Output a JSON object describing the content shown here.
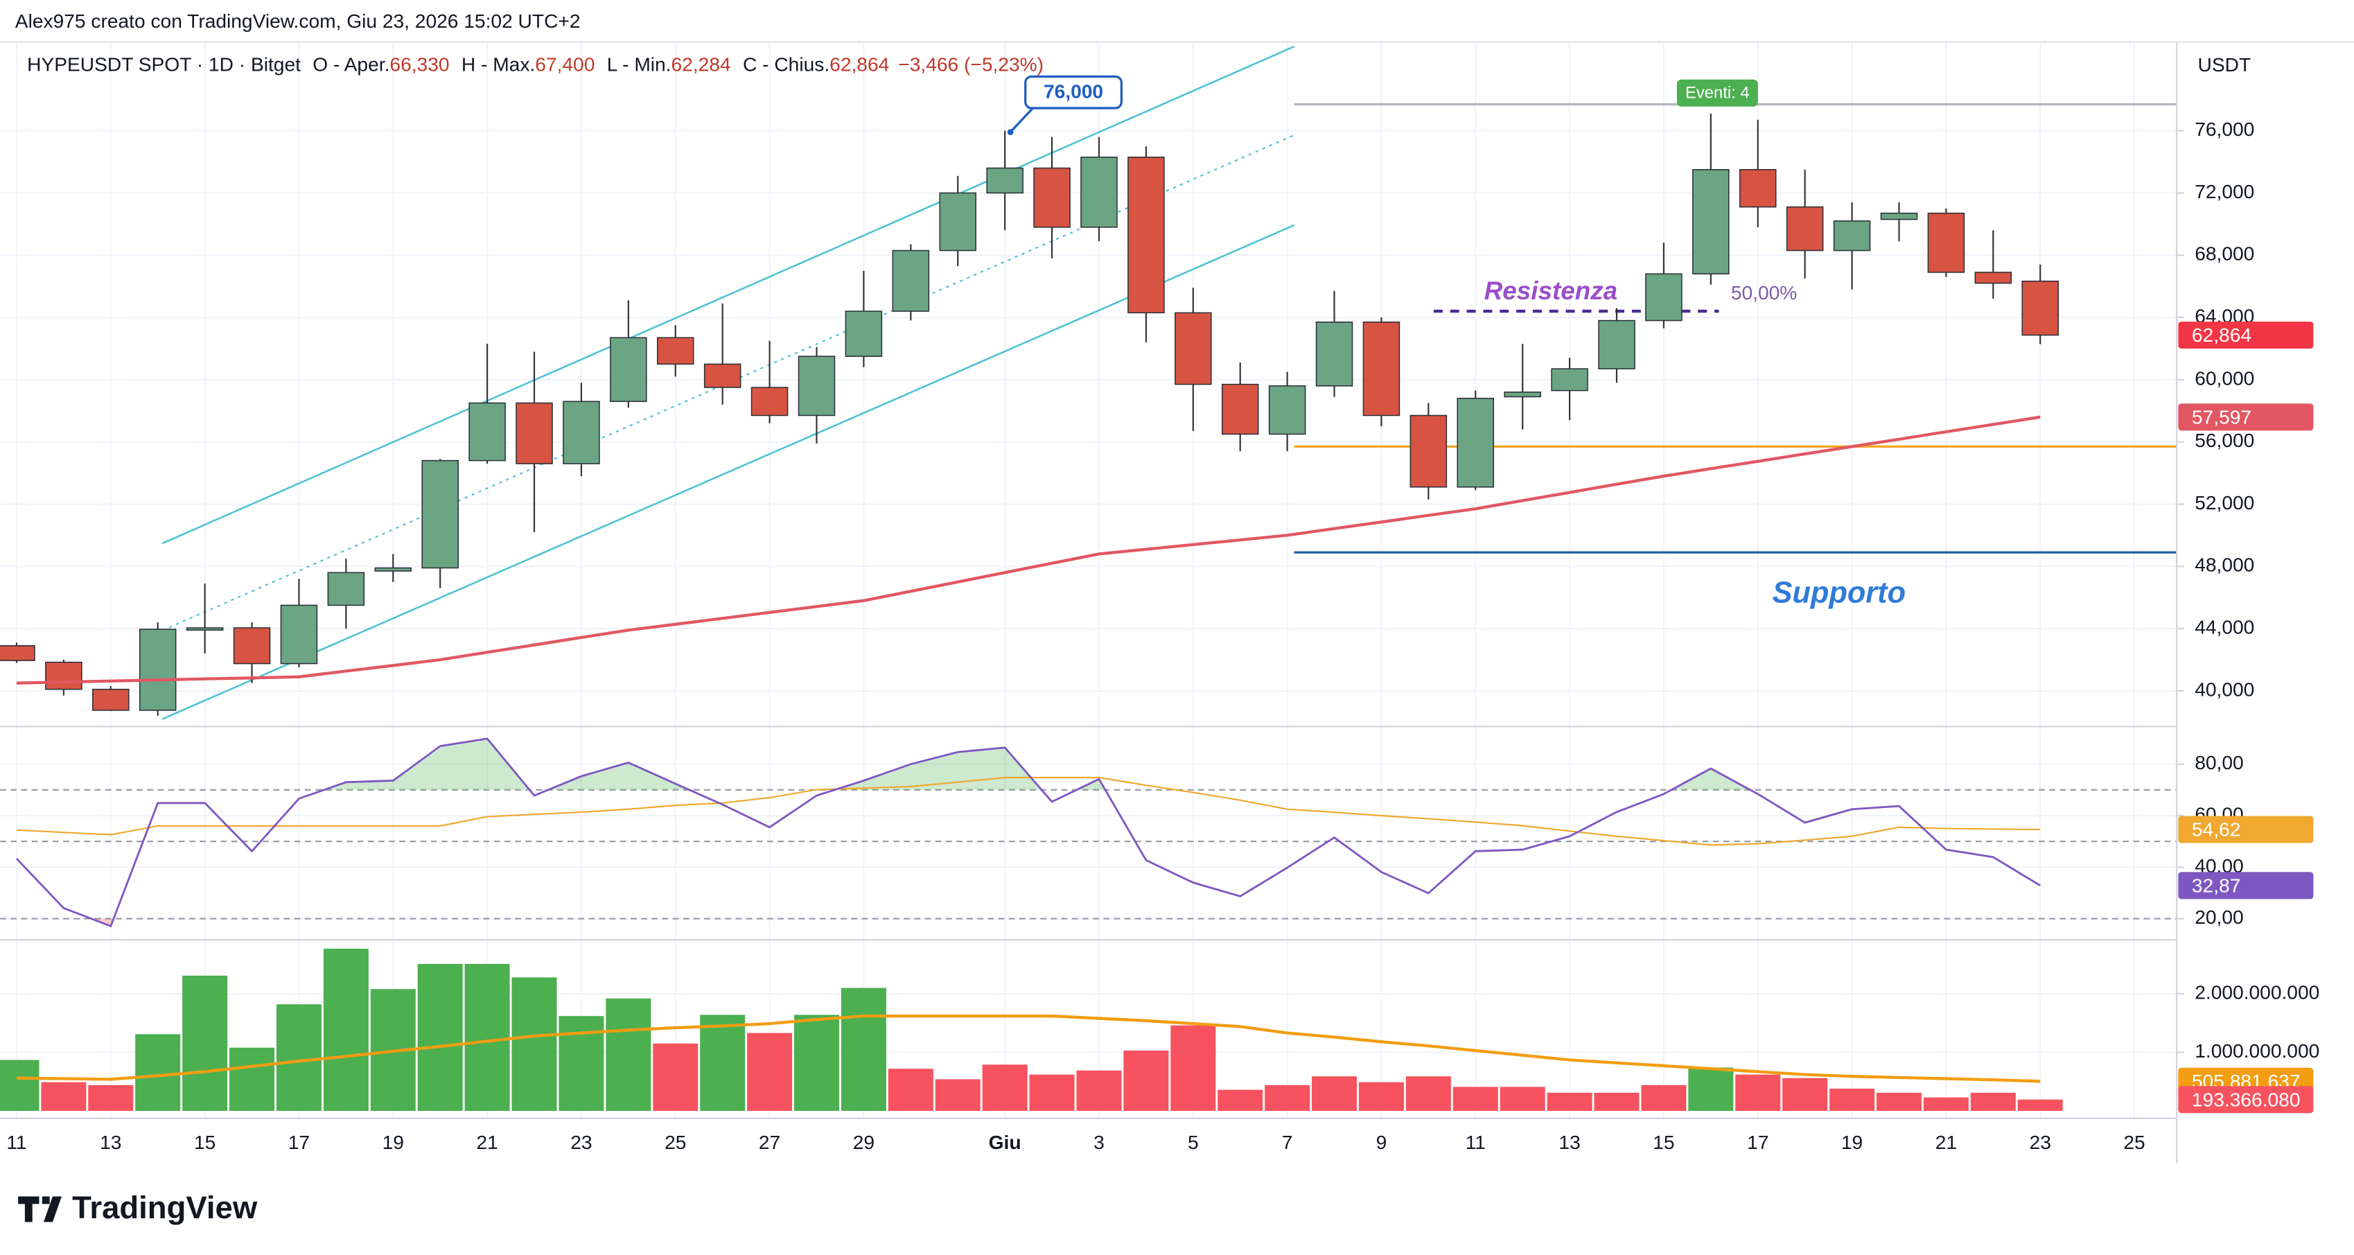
{
  "header": {
    "credit": "Alex975 creato con TradingView.com, Giu 23, 2026 15:02 UTC+2",
    "symbol": "HYPEUSDT SPOT · 1D · Bitget",
    "o": "O - Aper.",
    "o_value": "66,330",
    "h": "H - Max.",
    "h_value": "67,400",
    "l": "L - Min.",
    "l_value": "62,284",
    "c": "C - Chius.",
    "c_value": "62,864",
    "change": "−3,466 (−5,23%)"
  },
  "footer": {
    "brand": "TradingView"
  },
  "chart_data": [
    {
      "type": "candlestick",
      "currency": "USDT",
      "up_color": "#6ba583",
      "down_color": "#d75442",
      "open": [
        42900,
        41840,
        40100,
        38750,
        44000,
        44050,
        41750,
        45500,
        47700,
        47900,
        54800,
        58500,
        54600,
        58600,
        62700,
        61000,
        59500,
        57700,
        61500,
        64400,
        68300,
        72000,
        73600,
        69800,
        74300,
        64300,
        59700,
        56500,
        59600,
        63700,
        57700,
        53100,
        58900,
        59300,
        60700,
        63800,
        66800,
        73500,
        71100,
        68300,
        70300,
        70700,
        66900,
        66330,
        null,
        null
      ],
      "high": [
        43100,
        42000,
        40300,
        44400,
        46900,
        44400,
        47200,
        48500,
        48800,
        54900,
        62300,
        61800,
        59800,
        65100,
        63500,
        64900,
        62500,
        62100,
        67000,
        68700,
        73100,
        76000,
        75600,
        75600,
        75000,
        65900,
        61100,
        60500,
        65700,
        64000,
        58500,
        59300,
        62300,
        61400,
        64600,
        68800,
        77100,
        76700,
        73500,
        71400,
        71400,
        71000,
        69600,
        67400,
        null,
        null
      ],
      "low": [
        41800,
        39700,
        38700,
        38400,
        42400,
        40500,
        41500,
        44000,
        47000,
        46600,
        54600,
        50200,
        53800,
        58200,
        60200,
        58400,
        57200,
        55900,
        60800,
        63800,
        67300,
        69600,
        67800,
        68900,
        62400,
        56700,
        55400,
        55400,
        58900,
        57000,
        52300,
        52900,
        56800,
        57400,
        59800,
        63300,
        66100,
        69800,
        66500,
        65800,
        68900,
        66600,
        65200,
        62284,
        null,
        null
      ],
      "close": [
        41950,
        40100,
        38750,
        43960,
        44050,
        41750,
        45500,
        47600,
        47900,
        54800,
        58500,
        54600,
        58600,
        62700,
        61000,
        59500,
        57700,
        61500,
        64400,
        68300,
        72000,
        73600,
        69800,
        74300,
        64300,
        59700,
        56500,
        59600,
        63700,
        57700,
        53100,
        58800,
        59200,
        60700,
        63800,
        66800,
        73500,
        71100,
        68300,
        70200,
        70700,
        66900,
        66200,
        62864,
        null,
        null
      ],
      "close_labels": [
        null,
        null,
        null,
        null,
        null,
        null,
        null,
        null,
        null,
        null,
        null,
        null,
        null,
        null,
        null,
        null,
        null,
        null,
        null,
        null,
        null,
        null,
        null,
        null,
        null,
        null,
        null,
        null,
        null,
        null,
        null,
        null,
        null,
        null,
        null,
        null,
        null,
        null,
        null,
        null,
        null,
        null,
        null,
        "62,864",
        null,
        null
      ],
      "overlays": [
        {
          "color": "#e25762",
          "values": [
            40500,
            40570,
            40630,
            40700,
            40770,
            40830,
            40900,
            41270,
            41630,
            42000,
            42480,
            42950,
            43430,
            43900,
            44280,
            44660,
            45040,
            45420,
            45800,
            46400,
            47000,
            47600,
            48200,
            48800,
            49100,
            49400,
            49700,
            50000,
            50430,
            50850,
            51280,
            51700,
            52230,
            52750,
            53280,
            53800,
            54280,
            54750,
            55230,
            55700,
            56170,
            56650,
            57120,
            57597,
            null,
            null
          ],
          "value_labels": [
            null,
            null,
            null,
            null,
            null,
            null,
            null,
            null,
            null,
            null,
            null,
            null,
            null,
            null,
            null,
            null,
            null,
            null,
            null,
            null,
            null,
            null,
            null,
            null,
            null,
            null,
            null,
            null,
            null,
            null,
            null,
            null,
            null,
            null,
            null,
            null,
            null,
            null,
            null,
            null,
            null,
            null,
            null,
            "57,597",
            null,
            null
          ]
        }
      ],
      "levels": [
        {
          "value": 77700,
          "color": "#b2b5be",
          "style": "solid"
        },
        {
          "value": 55700,
          "color": "#f5a623",
          "style": "solid"
        },
        {
          "value": 48900,
          "color": "#1f5fa6",
          "style": "solid"
        },
        {
          "value": 64400,
          "color": "#4a2d8f",
          "style": "dashed"
        }
      ],
      "annotations": {
        "callout": "76,000",
        "events": "Eventi: 4",
        "resistance": "Resistenza",
        "fib": "50,00%",
        "support": "Supporto"
      },
      "ylim": [
        37800,
        81700
      ],
      "yticks": [
        {
          "value": 40000,
          "label": "40,000"
        },
        {
          "value": 44000,
          "label": "44,000"
        },
        {
          "value": 48000,
          "label": "48,000"
        },
        {
          "value": 52000,
          "label": "52,000"
        },
        {
          "value": 56000,
          "label": "56,000"
        },
        {
          "value": 60000,
          "label": "60,000"
        },
        {
          "value": 64000,
          "label": "64,000"
        },
        {
          "value": 68000,
          "label": "68,000"
        },
        {
          "value": 72000,
          "label": "72,000"
        },
        {
          "value": 76000,
          "label": "76,000"
        }
      ],
      "grid": true
    },
    {
      "type": "line",
      "ylim": [
        12.4,
        94
      ],
      "bands": [
        70,
        50,
        20
      ],
      "yticks": [
        {
          "value": 20,
          "label": "20,00"
        },
        {
          "value": 40,
          "label": "40,00"
        },
        {
          "value": 60,
          "label": "60,00"
        },
        {
          "value": 80,
          "label": "80,00"
        }
      ],
      "series": [
        {
          "color": "#7e57c2",
          "values": [
            43.3,
            24.1,
            17.1,
            64.9,
            64.9,
            46.2,
            66.6,
            73.0,
            73.6,
            87.0,
            89.9,
            67.8,
            75.3,
            80.6,
            72.4,
            64.3,
            55.5,
            67.8,
            73.6,
            80.0,
            84.7,
            86.4,
            65.4,
            74.2,
            42.7,
            34.0,
            28.7,
            39.8,
            51.5,
            38.1,
            29.9,
            46.2,
            46.8,
            52.0,
            61.4,
            68.4,
            78.3,
            68.4,
            57.3,
            62.5,
            63.7,
            46.8,
            43.9,
            32.87,
            null,
            null
          ],
          "value_labels": [
            null,
            null,
            null,
            null,
            null,
            null,
            null,
            null,
            null,
            null,
            null,
            null,
            null,
            null,
            null,
            null,
            null,
            null,
            null,
            null,
            null,
            null,
            null,
            null,
            null,
            null,
            null,
            null,
            null,
            null,
            null,
            null,
            null,
            null,
            null,
            null,
            null,
            null,
            null,
            null,
            null,
            null,
            null,
            "32,87",
            null,
            null
          ]
        },
        {
          "color": "#f0a830",
          "values": [
            54.4,
            53.5,
            52.6,
            56,
            56,
            56,
            56,
            56,
            56,
            56,
            59.6,
            60.5,
            61.4,
            62.5,
            64,
            64.9,
            67,
            70.1,
            70.7,
            71.3,
            73,
            74.8,
            74.8,
            74.8,
            71.8,
            69,
            66,
            62.5,
            61.3,
            60,
            58.8,
            57.5,
            56.1,
            54,
            52,
            50.3,
            48.6,
            49.1,
            50.5,
            52,
            55.5,
            55,
            54.8,
            54.62,
            null,
            null
          ],
          "value_labels": [
            null,
            null,
            null,
            null,
            null,
            null,
            null,
            null,
            null,
            null,
            null,
            null,
            null,
            null,
            null,
            null,
            null,
            null,
            null,
            null,
            null,
            null,
            null,
            null,
            null,
            null,
            null,
            null,
            null,
            null,
            null,
            null,
            null,
            null,
            null,
            null,
            null,
            null,
            null,
            null,
            null,
            null,
            null,
            "54,62",
            null,
            null
          ]
        }
      ],
      "grid": true
    },
    {
      "type": "bar",
      "ylim": [
        0,
        2820000000
      ],
      "yticks": [
        {
          "value": 1000000000,
          "label": "1.000.000.000"
        },
        {
          "value": 2000000000,
          "label": "2.000.000.000"
        }
      ],
      "categories": [
        "11",
        null,
        "13",
        null,
        "15",
        null,
        "17",
        null,
        "19",
        null,
        "21",
        null,
        "23",
        null,
        "25",
        null,
        "27",
        null,
        "29",
        null,
        null,
        "Giu",
        null,
        "3",
        null,
        "5",
        null,
        "7",
        null,
        "9",
        null,
        "11",
        null,
        "13",
        null,
        "15",
        null,
        "17",
        null,
        "19",
        null,
        "21",
        null,
        "23",
        null,
        "25"
      ],
      "values": [
        870000000,
        490000000,
        440000000,
        1310000000,
        2310000000,
        1080000000,
        1820000000,
        2770000000,
        2080000000,
        2510000000,
        2510000000,
        2280000000,
        1620000000,
        1920000000,
        1150000000,
        1640000000,
        1330000000,
        1640000000,
        2100000000,
        720000000,
        540000000,
        790000000,
        620000000,
        690000000,
        1030000000,
        1460000000,
        360000000,
        440000000,
        590000000,
        490000000,
        590000000,
        410000000,
        410000000,
        310000000,
        310000000,
        440000000,
        740000000,
        620000000,
        560000000,
        380000000,
        310000000,
        230000000,
        310000000,
        193366080,
        null,
        null
      ],
      "value_labels": [
        null,
        null,
        null,
        null,
        null,
        null,
        null,
        null,
        null,
        null,
        null,
        null,
        null,
        null,
        null,
        null,
        null,
        null,
        null,
        null,
        null,
        null,
        null,
        null,
        null,
        null,
        null,
        null,
        null,
        null,
        null,
        null,
        null,
        null,
        null,
        null,
        null,
        null,
        null,
        null,
        null,
        null,
        null,
        "193.366.080",
        null,
        null
      ],
      "colors": [
        "#4caf50",
        "#f7525f",
        "#f7525f",
        "#4caf50",
        "#4caf50",
        "#4caf50",
        "#4caf50",
        "#4caf50",
        "#4caf50",
        "#4caf50",
        "#4caf50",
        "#4caf50",
        "#4caf50",
        "#4caf50",
        "#f7525f",
        "#4caf50",
        "#f7525f",
        "#4caf50",
        "#4caf50",
        "#f7525f",
        "#f7525f",
        "#f7525f",
        "#f7525f",
        "#f7525f",
        "#f7525f",
        "#f7525f",
        "#f7525f",
        "#f7525f",
        "#f7525f",
        "#f7525f",
        "#f7525f",
        "#f7525f",
        "#f7525f",
        "#f7525f",
        "#f7525f",
        "#f7525f",
        "#4caf50",
        "#f7525f",
        "#f7525f",
        "#f7525f",
        "#f7525f",
        "#f7525f",
        "#f7525f",
        "#f7525f",
        null,
        null
      ],
      "overlays": [
        {
          "color": "#f29d12",
          "values": [
            560000000,
            550000000,
            540000000,
            600000000,
            670000000,
            760000000,
            850000000,
            930000000,
            1020000000,
            1100000000,
            1190000000,
            1280000000,
            1330000000,
            1380000000,
            1420000000,
            1450000000,
            1490000000,
            1560000000,
            1620000000,
            1620000000,
            1620000000,
            1620000000,
            1620000000,
            1580000000,
            1540000000,
            1490000000,
            1440000000,
            1330000000,
            1260000000,
            1180000000,
            1110000000,
            1030000000,
            950000000,
            870000000,
            820000000,
            770000000,
            720000000,
            670000000,
            620000000,
            590000000,
            570000000,
            550000000,
            530000000,
            505881637,
            null,
            null
          ],
          "value_labels": [
            null,
            null,
            null,
            null,
            null,
            null,
            null,
            null,
            null,
            null,
            null,
            null,
            null,
            null,
            null,
            null,
            null,
            null,
            null,
            null,
            null,
            null,
            null,
            null,
            null,
            null,
            null,
            null,
            null,
            null,
            null,
            null,
            null,
            null,
            null,
            null,
            null,
            null,
            null,
            null,
            null,
            null,
            null,
            "505.881.637",
            null,
            null
          ]
        }
      ],
      "grid": true
    }
  ]
}
